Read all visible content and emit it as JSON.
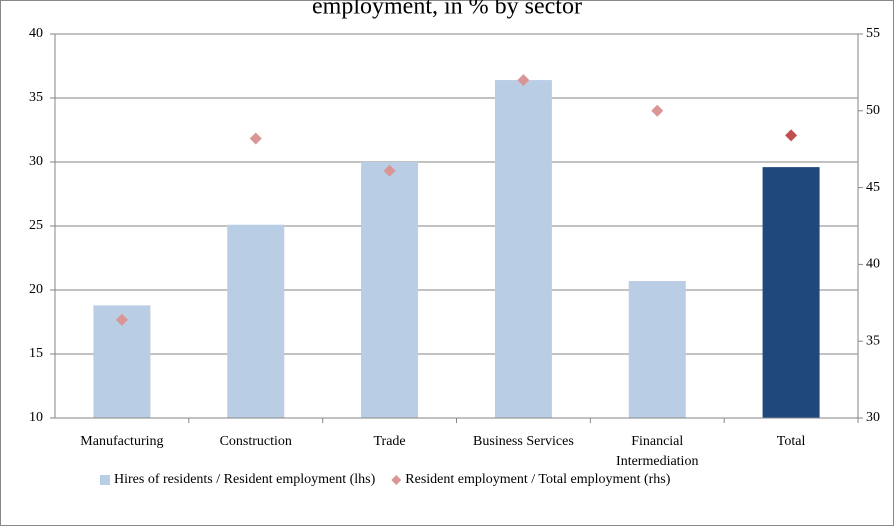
{
  "chart_data": {
    "type": "bar",
    "title": "employment, in % by sector",
    "categories": [
      "Manufacturing",
      "Construction",
      "Trade",
      "Business Services",
      "Financial Intermediation",
      "Total"
    ],
    "series": [
      {
        "name": "Hires of residents / Resident employment (lhs)",
        "color": "#b9cde5",
        "point_colors": [
          "#b9cde5",
          "#b9cde5",
          "#b9cde5",
          "#b9cde5",
          "#b9cde5",
          "#1f497d"
        ],
        "values": [
          18.8,
          25.1,
          30.0,
          36.4,
          20.7,
          29.6
        ]
      },
      {
        "name": "Resident employment / Total employment (rhs)",
        "color": "#d99694",
        "point_colors": [
          "#d99694",
          "#d99694",
          "#d99694",
          "#d99694",
          "#d99694",
          "#c0504d"
        ],
        "axis": "y2",
        "marker": "diamond",
        "values": [
          36.4,
          48.2,
          46.1,
          52.0,
          50.0,
          48.4
        ]
      }
    ],
    "ylim": [
      10,
      40
    ],
    "yticks": [
      10,
      15,
      20,
      25,
      30,
      35,
      40
    ],
    "y2lim": [
      30,
      55
    ],
    "y2ticks": [
      30,
      35,
      40,
      45,
      50,
      55
    ],
    "grid": true,
    "legend": "bottom"
  }
}
